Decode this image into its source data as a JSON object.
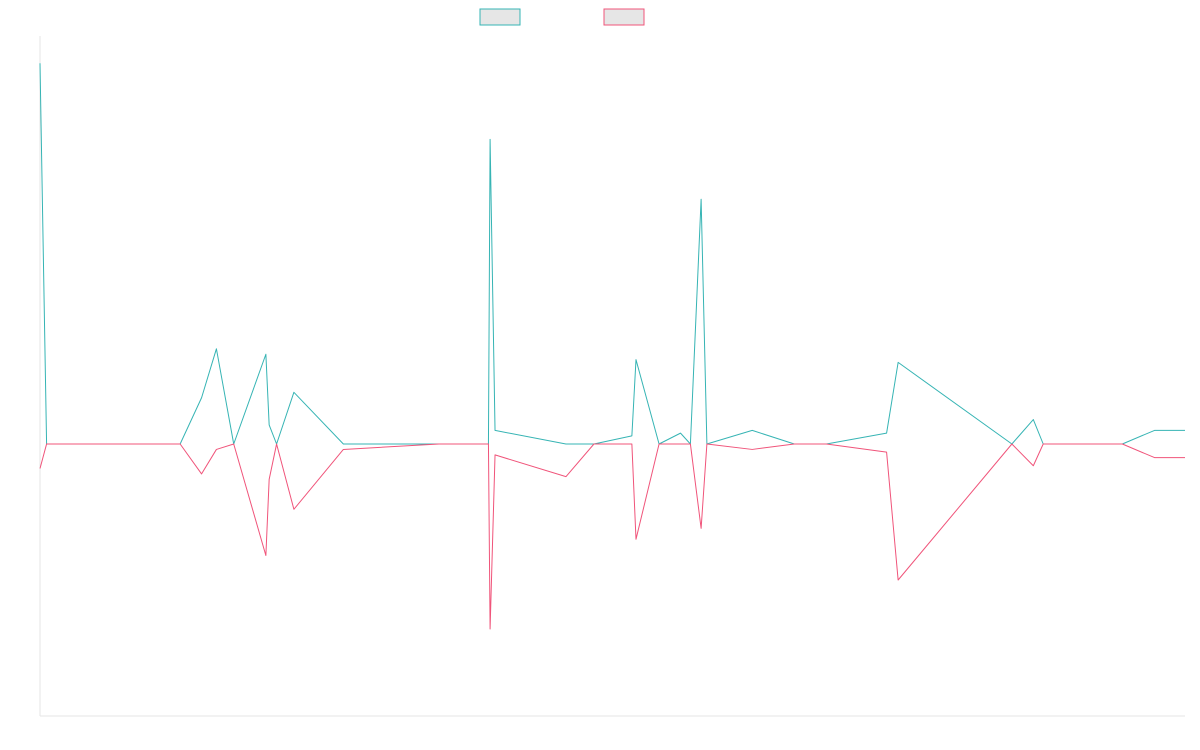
{
  "chart_data": {
    "type": "line",
    "title": "",
    "xlabel": "",
    "ylabel": "",
    "grid": false,
    "legend_position": "top-center",
    "ylim": [
      -100,
      150
    ],
    "x": [
      0,
      0.8,
      5,
      17,
      19.6,
      21.4,
      23.5,
      27.4,
      27.8,
      28.7,
      30.8,
      36.8,
      48.4,
      54.4,
      54.6,
      55.2,
      63.8,
      67.2,
      71.8,
      72.3,
      75.1,
      77.7,
      78.9,
      80.2,
      80.9,
      86.4,
      91.5,
      95.4,
      102.7,
      104.1,
      117.9,
      120.5,
      121.7,
      131.3,
      135.2,
      138.9
    ],
    "series": [
      {
        "name": "",
        "color": "#36b4b4",
        "values": [
          140,
          0,
          0,
          0,
          17,
          35,
          0,
          33,
          7,
          0,
          19,
          0,
          0,
          0,
          112,
          5,
          0,
          0,
          3,
          31,
          0,
          4,
          0,
          90,
          0,
          5,
          0,
          0,
          4,
          30,
          0,
          9,
          0,
          0,
          5,
          5
        ]
      },
      {
        "name": "",
        "color": "#f0547a",
        "values": [
          -9,
          0,
          0,
          0,
          -11,
          -2,
          0,
          -41,
          -13,
          0,
          -24,
          -2,
          0,
          0,
          -68,
          -4,
          -12,
          0,
          0,
          -35,
          0,
          0,
          0,
          -31,
          0,
          -2,
          0,
          0,
          -3,
          -50,
          0,
          -8,
          0,
          0,
          -5,
          -5
        ]
      }
    ]
  }
}
